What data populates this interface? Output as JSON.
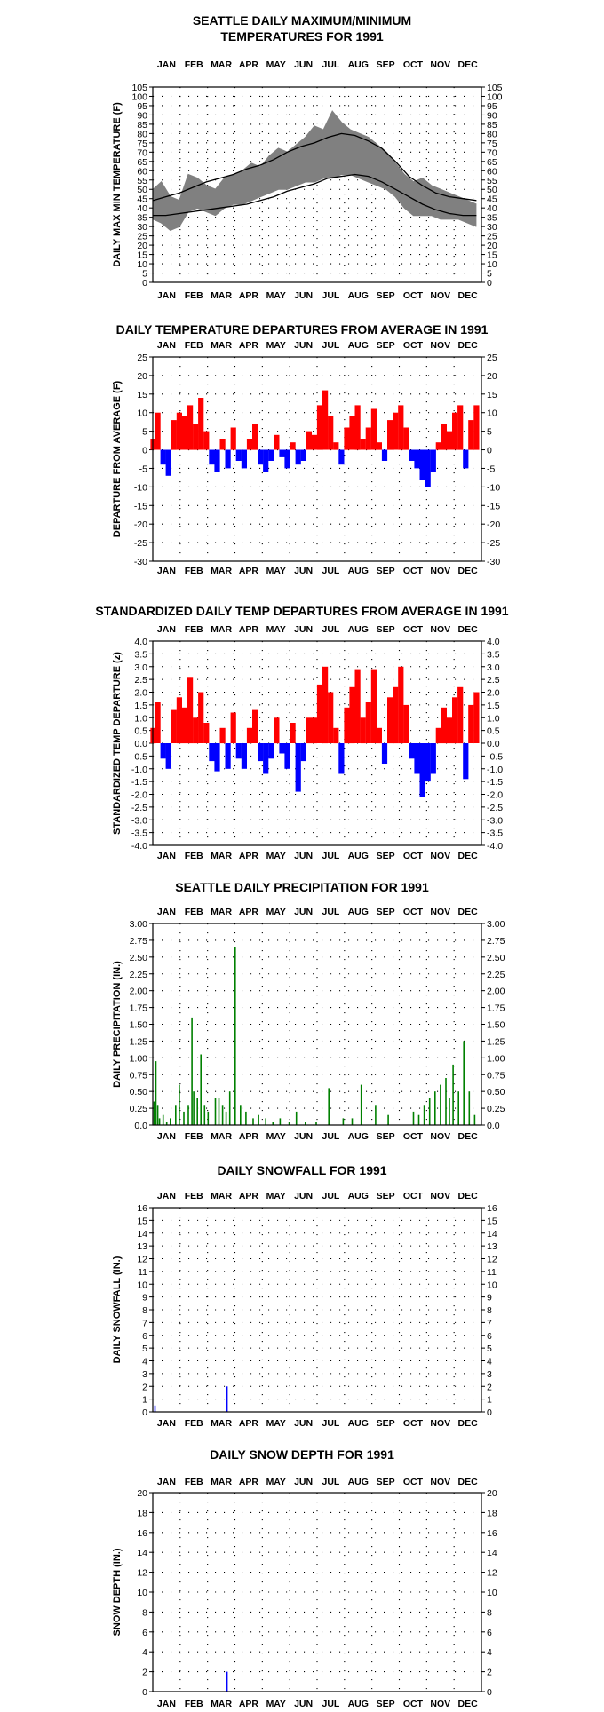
{
  "months": [
    "JAN",
    "FEB",
    "MAR",
    "APR",
    "MAY",
    "JUN",
    "JUL",
    "AUG",
    "SEP",
    "OCT",
    "NOV",
    "DEC"
  ],
  "colors": {
    "temp_band": "#808080",
    "normal_line": "#000000",
    "above": "#ff0000",
    "below": "#0000ff",
    "precip": "#008000",
    "snow": "#0000ff"
  },
  "chart_data": [
    {
      "type": "line",
      "title": "SEATTLE DAILY MAXIMUM/MINIMUM",
      "subtitle": "TEMPERATURES FOR 1991",
      "ylabel": "DAILY MAX MIN TEMPERATURE (F)",
      "ylim": [
        0,
        105
      ],
      "y_ticks": [
        0,
        5,
        10,
        15,
        20,
        25,
        30,
        35,
        40,
        45,
        50,
        55,
        60,
        65,
        70,
        75,
        80,
        85,
        90,
        95,
        100,
        105
      ],
      "grid": true,
      "series": [
        {
          "x": [
            1,
            15,
            30,
            45,
            60,
            75,
            90,
            105,
            120,
            135,
            150,
            165,
            180,
            195,
            210,
            225,
            240,
            255,
            270,
            285,
            300,
            315,
            330,
            345,
            360
          ],
          "values": [
            44,
            46,
            48,
            51,
            54,
            56,
            58,
            61,
            63,
            66,
            70,
            73,
            75,
            78,
            80,
            79,
            76,
            72,
            65,
            57,
            52,
            48,
            46,
            45,
            44
          ]
        },
        {
          "x": [
            1,
            15,
            30,
            45,
            60,
            75,
            90,
            105,
            120,
            135,
            150,
            165,
            180,
            195,
            210,
            225,
            240,
            255,
            270,
            285,
            300,
            315,
            330,
            345,
            360
          ],
          "values": [
            36,
            36,
            37,
            38,
            39,
            40,
            41,
            42,
            44,
            46,
            49,
            51,
            53,
            56,
            57,
            58,
            57,
            54,
            50,
            46,
            42,
            39,
            37,
            36,
            36
          ]
        },
        {
          "x": [
            1,
            10,
            20,
            30,
            40,
            50,
            60,
            70,
            80,
            90,
            100,
            110,
            120,
            130,
            140,
            150,
            160,
            170,
            180,
            190,
            200,
            210,
            220,
            230,
            240,
            250,
            260,
            270,
            280,
            290,
            300,
            310,
            320,
            330,
            340,
            350,
            360
          ],
          "values": [
            50,
            54,
            46,
            44,
            58,
            56,
            52,
            50,
            56,
            58,
            60,
            64,
            62,
            68,
            72,
            70,
            74,
            78,
            84,
            82,
            92,
            86,
            82,
            80,
            78,
            74,
            70,
            64,
            58,
            54,
            56,
            52,
            50,
            48,
            46,
            44,
            42
          ]
        },
        {
          "x": [
            1,
            10,
            20,
            30,
            40,
            50,
            60,
            70,
            80,
            90,
            100,
            110,
            120,
            130,
            140,
            150,
            160,
            170,
            180,
            190,
            200,
            210,
            220,
            230,
            240,
            250,
            260,
            270,
            280,
            290,
            300,
            310,
            320,
            330,
            340,
            350,
            360
          ],
          "values": [
            34,
            32,
            28,
            30,
            38,
            40,
            38,
            36,
            40,
            42,
            42,
            44,
            46,
            48,
            50,
            50,
            52,
            54,
            54,
            56,
            56,
            58,
            58,
            56,
            54,
            52,
            50,
            46,
            40,
            36,
            36,
            36,
            34,
            34,
            34,
            32,
            30
          ]
        }
      ]
    },
    {
      "type": "bar",
      "title": "DAILY TEMPERATURE DEPARTURES FROM AVERAGE IN 1991",
      "ylabel": "DEPARTURE FROM AVERAGE (F)",
      "ylim": [
        -30,
        25
      ],
      "y_ticks": [
        25,
        20,
        15,
        10,
        5,
        0,
        -5,
        -10,
        -15,
        -20,
        -25,
        -30
      ],
      "grid": true,
      "x": [
        1,
        6,
        12,
        18,
        24,
        30,
        36,
        42,
        48,
        54,
        60,
        66,
        72,
        78,
        84,
        90,
        96,
        102,
        108,
        114,
        120,
        126,
        132,
        138,
        144,
        150,
        156,
        162,
        168,
        174,
        180,
        186,
        192,
        198,
        204,
        210,
        216,
        222,
        228,
        234,
        240,
        246,
        252,
        258,
        264,
        270,
        276,
        282,
        288,
        294,
        300,
        306,
        312,
        318,
        324,
        330,
        336,
        342,
        348,
        354,
        360
      ],
      "values": [
        3,
        10,
        -4,
        -7,
        8,
        10,
        9,
        12,
        7,
        14,
        5,
        -4,
        -6,
        3,
        -5,
        6,
        -3,
        -5,
        3,
        7,
        -4,
        -6,
        -3,
        4,
        -2,
        -5,
        2,
        -4,
        -3,
        5,
        4,
        12,
        16,
        9,
        2,
        -4,
        6,
        9,
        12,
        3,
        6,
        11,
        2,
        -3,
        8,
        10,
        12,
        6,
        -3,
        -5,
        -8,
        -10,
        -6,
        2,
        7,
        5,
        10,
        12,
        -5,
        8,
        12
      ]
    },
    {
      "type": "bar",
      "title": "STANDARDIZED DAILY TEMP DEPARTURES FROM AVERAGE IN 1991",
      "ylabel": "STANDARDIZED TEMP DEPARTURE (z)",
      "ylim": [
        -4,
        4
      ],
      "y_ticks": [
        "4.0",
        "3.5",
        "3.0",
        "2.5",
        "2.0",
        "1.5",
        "1.0",
        "0.5",
        "0.0",
        "-0.5",
        "-1.0",
        "-1.5",
        "-2.0",
        "-2.5",
        "-3.0",
        "-3.5",
        "-4.0"
      ],
      "grid": true,
      "x": [
        1,
        6,
        12,
        18,
        24,
        30,
        36,
        42,
        48,
        54,
        60,
        66,
        72,
        78,
        84,
        90,
        96,
        102,
        108,
        114,
        120,
        126,
        132,
        138,
        144,
        150,
        156,
        162,
        168,
        174,
        180,
        186,
        192,
        198,
        204,
        210,
        216,
        222,
        228,
        234,
        240,
        246,
        252,
        258,
        264,
        270,
        276,
        282,
        288,
        294,
        300,
        306,
        312,
        318,
        324,
        330,
        336,
        342,
        348,
        354,
        360
      ],
      "values": [
        0.6,
        1.6,
        -0.6,
        -1.0,
        1.3,
        1.8,
        1.4,
        2.6,
        1.0,
        2.0,
        0.8,
        -0.7,
        -1.1,
        0.6,
        -1.0,
        1.2,
        -0.6,
        -1.0,
        0.6,
        1.3,
        -0.7,
        -1.2,
        -0.6,
        1.0,
        -0.4,
        -1.0,
        0.8,
        -1.9,
        -0.7,
        1.0,
        1.0,
        2.3,
        3.0,
        2.0,
        0.6,
        -1.2,
        1.4,
        2.2,
        2.9,
        1.0,
        1.6,
        2.9,
        0.6,
        -0.8,
        1.8,
        2.2,
        3.0,
        1.5,
        -0.6,
        -1.2,
        -2.1,
        -1.5,
        -1.2,
        0.6,
        1.4,
        1.0,
        1.8,
        2.2,
        -1.4,
        1.5,
        2.0
      ]
    },
    {
      "type": "bar",
      "title": "SEATTLE DAILY PRECIPITATION FOR 1991",
      "ylabel": "DAILY PRECIPITATION (IN.)",
      "ylim": [
        0,
        3.0
      ],
      "y_ticks": [
        "3.00",
        "2.75",
        "2.50",
        "2.25",
        "2.00",
        "1.75",
        "1.50",
        "1.25",
        "1.00",
        "0.75",
        "0.50",
        "0.25",
        "0.0"
      ],
      "grid": true,
      "x": [
        2,
        4,
        6,
        8,
        12,
        16,
        20,
        26,
        30,
        35,
        40,
        44,
        46,
        50,
        54,
        58,
        62,
        70,
        74,
        78,
        82,
        86,
        92,
        98,
        104,
        112,
        118,
        126,
        134,
        142,
        152,
        160,
        170,
        182,
        196,
        212,
        222,
        232,
        248,
        262,
        290,
        296,
        302,
        308,
        314,
        320,
        326,
        330,
        334,
        340,
        346,
        352,
        358
      ],
      "values": [
        0.35,
        0.95,
        0.3,
        0.1,
        0.15,
        0.05,
        0.1,
        0.3,
        0.6,
        0.2,
        0.3,
        1.6,
        0.5,
        0.4,
        1.05,
        0.3,
        0.2,
        0.4,
        0.4,
        0.3,
        0.2,
        0.5,
        2.65,
        0.3,
        0.2,
        0.1,
        0.15,
        0.1,
        0.05,
        0.1,
        0.05,
        0.2,
        0.05,
        0.05,
        0.55,
        0.1,
        0.1,
        0.6,
        0.3,
        0.15,
        0.2,
        0.15,
        0.3,
        0.4,
        0.5,
        0.6,
        0.7,
        0.4,
        0.9,
        0.5,
        1.25,
        0.5,
        0.15
      ]
    },
    {
      "type": "bar",
      "title": "DAILY SNOWFALL FOR 1991",
      "ylabel": "DAILY SNOWFALL (IN.)",
      "ylim": [
        0,
        16
      ],
      "y_ticks": [
        16,
        15,
        14,
        13,
        12,
        11,
        10,
        9,
        8,
        7,
        6,
        5,
        4,
        3,
        2,
        1,
        0
      ],
      "grid": true,
      "x": [
        3,
        83
      ],
      "values": [
        0.5,
        2.0
      ]
    },
    {
      "type": "bar",
      "title": "DAILY SNOW DEPTH FOR 1991",
      "ylabel": "SNOW DEPTH (IN.)",
      "ylim": [
        0,
        20
      ],
      "y_ticks": [
        20,
        18,
        16,
        14,
        12,
        10,
        8,
        6,
        4,
        2,
        0
      ],
      "grid": true,
      "x": [
        83
      ],
      "values": [
        2.0
      ]
    }
  ]
}
